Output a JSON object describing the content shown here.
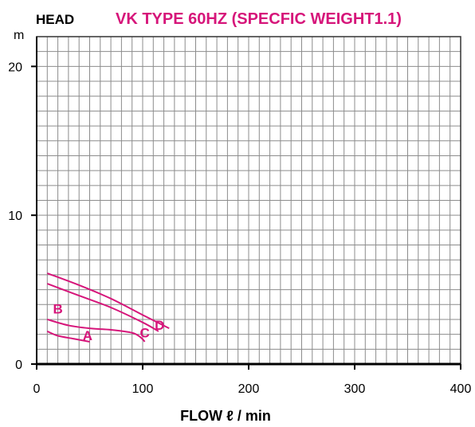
{
  "header": {
    "ylabel_top": "HEAD",
    "title": "VK TYPE 60HZ (SPECFIC WEIGHT1.1)",
    "title_color": "#d6157a"
  },
  "chart_data": {
    "type": "line",
    "title": "VK TYPE 60HZ (SPECFIC WEIGHT1.1)",
    "ylabel": "HEAD",
    "yunit": "m",
    "xlabel": "FLOW ℓ / min",
    "xlim": [
      0,
      400
    ],
    "ylim": [
      0,
      22
    ],
    "xticks": [
      0,
      100,
      200,
      300,
      400
    ],
    "xtick_labels": [
      "0",
      "100",
      "200",
      "300",
      "400"
    ],
    "yticks": [
      0,
      10,
      20
    ],
    "ytick_labels": [
      "0",
      "10",
      "20"
    ],
    "grid": true,
    "grid_minor_x": 10,
    "grid_minor_y": 1,
    "curve_color": "#d6157a",
    "series": [
      {
        "name": "A",
        "x": [
          10,
          20,
          35,
          50
        ],
        "y": [
          2.2,
          1.9,
          1.7,
          1.5
        ]
      },
      {
        "name": "B",
        "x": [
          10,
          30,
          50,
          70,
          90,
          98,
          102
        ],
        "y": [
          3.0,
          2.6,
          2.4,
          2.3,
          2.1,
          1.8,
          1.5
        ]
      },
      {
        "name": "C",
        "x": [
          10,
          40,
          70,
          100,
          115
        ],
        "y": [
          5.4,
          4.6,
          3.8,
          2.8,
          2.2
        ]
      },
      {
        "name": "D",
        "x": [
          10,
          40,
          70,
          100,
          125
        ],
        "y": [
          6.1,
          5.3,
          4.4,
          3.3,
          2.4
        ]
      }
    ],
    "series_labels": [
      {
        "text": "A",
        "x": 48,
        "y": 1.6
      },
      {
        "text": "B",
        "x": 20,
        "y": 3.4
      },
      {
        "text": "C",
        "x": 102,
        "y": 1.8
      },
      {
        "text": "D",
        "x": 116,
        "y": 2.3
      }
    ]
  }
}
